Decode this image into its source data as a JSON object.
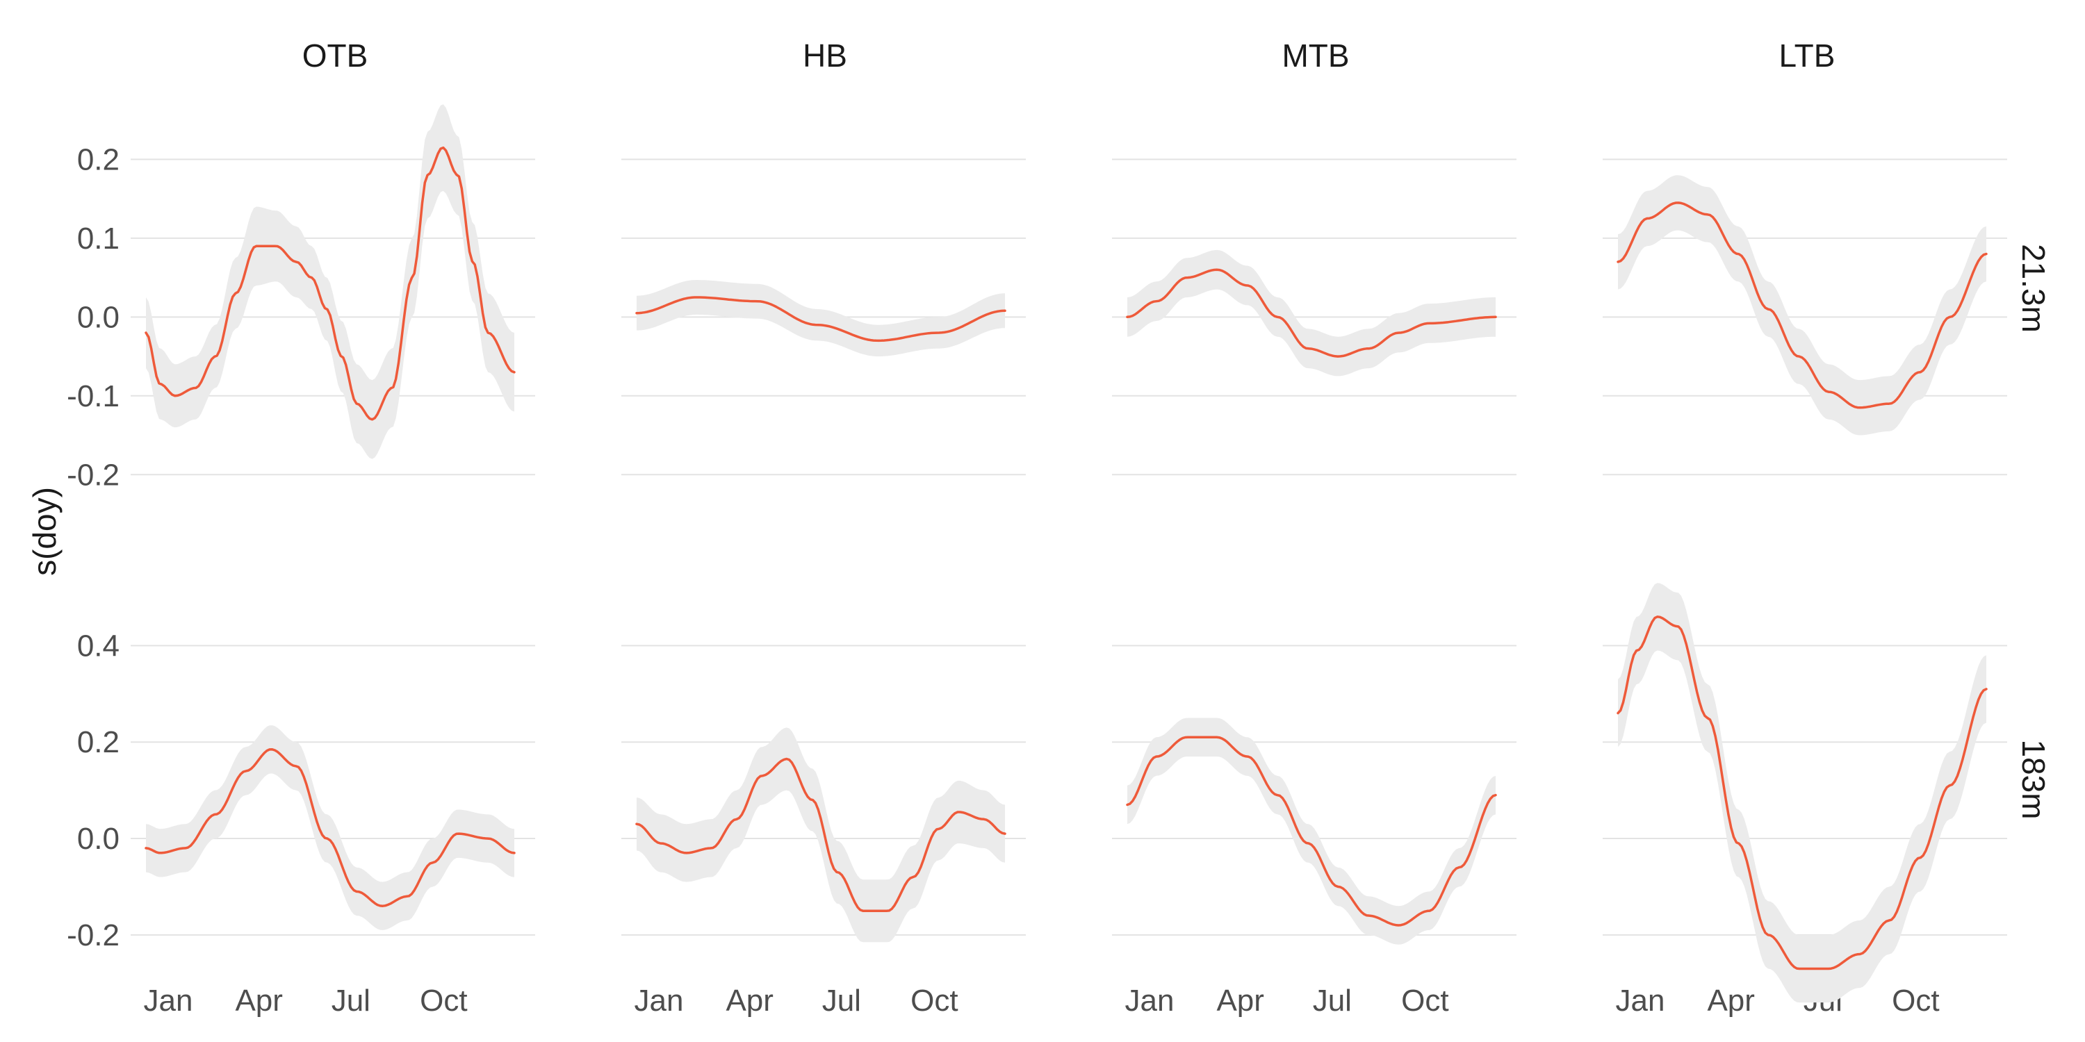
{
  "colors": {
    "line": "#EE5A3A",
    "ribbon": "#EBEBEB",
    "grid": "#E3E3E3"
  },
  "chart_data": {
    "type": "line",
    "ylabel": "s(doy)",
    "columns": [
      "OTB",
      "HB",
      "MTB",
      "LTB"
    ],
    "rows": [
      "21.3m",
      "183m"
    ],
    "x_ticks": [
      {
        "label": "Jan",
        "doy": 1
      },
      {
        "label": "Apr",
        "doy": 91
      },
      {
        "label": "Jul",
        "doy": 182
      },
      {
        "label": "Oct",
        "doy": 274
      }
    ],
    "xlim": [
      1,
      366
    ],
    "y_axes": [
      {
        "row": "21.3m",
        "ylim": [
          -0.25,
          0.27
        ],
        "ticks": [
          0.2,
          0.1,
          0.0,
          -0.1,
          -0.2
        ],
        "tick_labels": [
          "0.2",
          "0.1",
          "0.0",
          "-0.1",
          "-0.2"
        ]
      },
      {
        "row": "183m",
        "ylim": [
          -0.35,
          0.5
        ],
        "ticks": [
          0.4,
          0.2,
          0.0,
          -0.2
        ],
        "tick_labels": [
          "0.4",
          "0.2",
          "0.0",
          "-0.2"
        ]
      }
    ],
    "panels": [
      {
        "row": "21.3m",
        "col": "OTB",
        "x": [
          1,
          15,
          30,
          50,
          70,
          90,
          110,
          130,
          150,
          165,
          180,
          195,
          210,
          225,
          245,
          265,
          280,
          295,
          310,
          325,
          340,
          366
        ],
        "y": [
          -0.02,
          -0.085,
          -0.1,
          -0.09,
          -0.05,
          0.03,
          0.09,
          0.09,
          0.07,
          0.05,
          0.01,
          -0.05,
          -0.11,
          -0.13,
          -0.09,
          0.05,
          0.18,
          0.215,
          0.18,
          0.07,
          -0.02,
          -0.07
        ],
        "se": [
          0.045,
          0.045,
          0.04,
          0.04,
          0.04,
          0.045,
          0.05,
          0.045,
          0.045,
          0.04,
          0.04,
          0.045,
          0.05,
          0.05,
          0.05,
          0.05,
          0.055,
          0.055,
          0.05,
          0.05,
          0.05,
          0.05
        ]
      },
      {
        "row": "21.3m",
        "col": "HB",
        "x": [
          1,
          60,
          120,
          180,
          240,
          300,
          366
        ],
        "y": [
          0.005,
          0.025,
          0.02,
          -0.01,
          -0.03,
          -0.02,
          0.008
        ],
        "se": [
          0.022,
          0.022,
          0.022,
          0.02,
          0.02,
          0.02,
          0.022
        ]
      },
      {
        "row": "21.3m",
        "col": "MTB",
        "x": [
          1,
          30,
          60,
          90,
          120,
          150,
          180,
          210,
          240,
          270,
          300,
          366
        ],
        "y": [
          0.0,
          0.02,
          0.05,
          0.06,
          0.04,
          0.0,
          -0.04,
          -0.05,
          -0.04,
          -0.02,
          -0.008,
          0.0
        ],
        "se": [
          0.025,
          0.025,
          0.025,
          0.025,
          0.025,
          0.025,
          0.025,
          0.025,
          0.025,
          0.025,
          0.025,
          0.025
        ]
      },
      {
        "row": "21.3m",
        "col": "LTB",
        "x": [
          1,
          30,
          60,
          90,
          120,
          150,
          180,
          210,
          240,
          270,
          300,
          330,
          366
        ],
        "y": [
          0.07,
          0.125,
          0.145,
          0.13,
          0.08,
          0.01,
          -0.05,
          -0.095,
          -0.115,
          -0.11,
          -0.07,
          0.0,
          0.08
        ],
        "se": [
          0.035,
          0.035,
          0.035,
          0.035,
          0.035,
          0.035,
          0.035,
          0.035,
          0.035,
          0.035,
          0.035,
          0.035,
          0.035
        ]
      },
      {
        "row": "183m",
        "col": "OTB",
        "x": [
          1,
          15,
          40,
          70,
          100,
          125,
          150,
          180,
          210,
          235,
          260,
          285,
          310,
          340,
          366
        ],
        "y": [
          -0.02,
          -0.03,
          -0.02,
          0.05,
          0.14,
          0.185,
          0.15,
          0.0,
          -0.11,
          -0.14,
          -0.12,
          -0.05,
          0.01,
          0.0,
          -0.03
        ],
        "se": [
          0.05,
          0.05,
          0.05,
          0.05,
          0.05,
          0.05,
          0.05,
          0.05,
          0.05,
          0.05,
          0.05,
          0.05,
          0.05,
          0.05,
          0.05
        ]
      },
      {
        "row": "183m",
        "col": "HB",
        "x": [
          1,
          25,
          50,
          75,
          100,
          125,
          150,
          175,
          200,
          225,
          250,
          275,
          300,
          320,
          345,
          366
        ],
        "y": [
          0.03,
          -0.01,
          -0.03,
          -0.02,
          0.04,
          0.13,
          0.165,
          0.08,
          -0.07,
          -0.15,
          -0.15,
          -0.08,
          0.02,
          0.055,
          0.04,
          0.01
        ],
        "se": [
          0.055,
          0.06,
          0.06,
          0.06,
          0.06,
          0.06,
          0.065,
          0.065,
          0.065,
          0.065,
          0.065,
          0.065,
          0.065,
          0.065,
          0.06,
          0.06
        ]
      },
      {
        "row": "183m",
        "col": "MTB",
        "x": [
          1,
          30,
          60,
          90,
          120,
          150,
          180,
          210,
          240,
          270,
          300,
          330,
          366
        ],
        "y": [
          0.07,
          0.17,
          0.21,
          0.21,
          0.17,
          0.09,
          -0.01,
          -0.1,
          -0.16,
          -0.18,
          -0.15,
          -0.06,
          0.09
        ],
        "se": [
          0.04,
          0.04,
          0.04,
          0.04,
          0.04,
          0.04,
          0.04,
          0.04,
          0.04,
          0.04,
          0.04,
          0.04,
          0.04
        ]
      },
      {
        "row": "183m",
        "col": "LTB",
        "x": [
          1,
          20,
          40,
          60,
          90,
          120,
          150,
          180,
          210,
          240,
          270,
          300,
          330,
          366
        ],
        "y": [
          0.26,
          0.39,
          0.46,
          0.44,
          0.25,
          -0.01,
          -0.2,
          -0.27,
          -0.27,
          -0.24,
          -0.17,
          -0.04,
          0.11,
          0.31
        ],
        "se": [
          0.07,
          0.07,
          0.07,
          0.07,
          0.07,
          0.07,
          0.07,
          0.07,
          0.07,
          0.07,
          0.07,
          0.07,
          0.07,
          0.07
        ]
      }
    ]
  }
}
